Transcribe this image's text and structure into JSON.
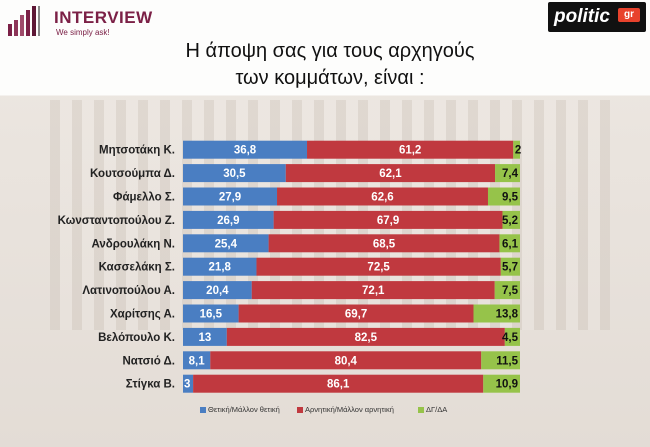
{
  "logo": {
    "name": "INTERVIEW",
    "tagline": "We simply ask!"
  },
  "brand": {
    "name": "politic",
    "suffix": "gr"
  },
  "title_line1": "Η άποψη σας για τους αρχηγούς",
  "title_line2": "των κομμάτων,  είναι :",
  "colors": {
    "positive": "#4a7ec2",
    "negative": "#c0393f",
    "dk": "#96c34a",
    "logo": "#7b2046"
  },
  "chart_data": {
    "type": "bar",
    "orientation": "horizontal",
    "stacked": "100%",
    "categories": [
      "Μητσοτάκη Κ.",
      "Κουτσούμπα Δ.",
      "Φάμελλο Σ.",
      "Κωνσταντοπούλου Ζ.",
      "Ανδρουλάκη Ν.",
      "Κασσελάκη Σ.",
      "Λατινοπούλου Α.",
      "Χαρίτσης Α.",
      "Βελόπουλο Κ.",
      "Νατσιό Δ.",
      "Στίγκα Β."
    ],
    "series": [
      {
        "name": "Θετική/Μάλλον θετική",
        "color": "#4a7ec2",
        "values": [
          36.8,
          30.5,
          27.9,
          26.9,
          25.4,
          21.8,
          20.4,
          16.5,
          13,
          8.1,
          3
        ]
      },
      {
        "name": "Αρνητική/Μάλλον αρνητική",
        "color": "#c0393f",
        "values": [
          61.2,
          62.1,
          62.6,
          67.9,
          68.5,
          72.5,
          72.1,
          69.7,
          82.5,
          80.4,
          86.1
        ]
      },
      {
        "name": "ΔΓ/ΔΑ",
        "color": "#96c34a",
        "values": [
          2,
          7.4,
          9.5,
          5.2,
          6.1,
          5.7,
          7.5,
          13.8,
          4.5,
          11.5,
          10.9
        ]
      }
    ],
    "value_labels": [
      [
        "36,8",
        "30,5",
        "27,9",
        "26,9",
        "25,4",
        "21,8",
        "20,4",
        "16,5",
        "13",
        "8,1",
        "3"
      ],
      [
        "61,2",
        "62,1",
        "62,6",
        "67,9",
        "68,5",
        "72,5",
        "72,1",
        "69,7",
        "82,5",
        "80,4",
        "86,1"
      ],
      [
        "2",
        "7,4",
        "9,5",
        "5,2",
        "6,1",
        "5,7",
        "7,5",
        "13,8",
        "4,5",
        "11,5",
        "10,9"
      ]
    ],
    "legend_position": "bottom"
  }
}
